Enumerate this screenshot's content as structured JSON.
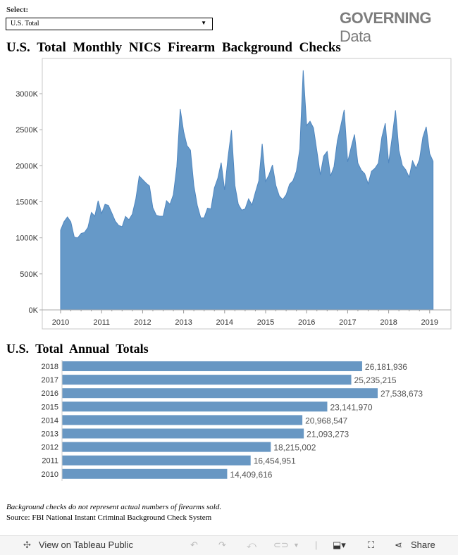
{
  "filter": {
    "label": "Select:",
    "value": "U.S. Total"
  },
  "logo": {
    "bold": "GOVERNING",
    "light": "Data"
  },
  "monthly_title": "U.S. Total Monthly NICS Firearm Background Checks",
  "annual_title": "U.S. Total Annual Totals",
  "footnote": "Background checks do not represent actual numbers of firearms sold.",
  "source": "Source: FBI National Instant Criminal Background Check System",
  "toolbar": {
    "view_label": "View on Tableau Public",
    "share_label": "Share"
  },
  "colors": {
    "area": "#6699c8",
    "area_stroke": "#4f86bf",
    "bar": "#6897c3"
  },
  "chart_data": [
    {
      "type": "area",
      "title": "U.S. Total Monthly NICS Firearm Background Checks",
      "x_start": "2010-01",
      "x_interval": "month",
      "x_ticks": [
        "2010",
        "2011",
        "2012",
        "2013",
        "2014",
        "2015",
        "2016",
        "2017",
        "2018",
        "2019"
      ],
      "y_ticks": [
        "0K",
        "500K",
        "1000K",
        "1500K",
        "2000K",
        "2500K",
        "3000K"
      ],
      "ylim": [
        0,
        3450
      ],
      "y_units": "thousands",
      "grid": false,
      "values": [
        1107,
        1222,
        1290,
        1222,
        1010,
        1000,
        1059,
        1075,
        1144,
        1352,
        1300,
        1515,
        1339,
        1466,
        1450,
        1342,
        1232,
        1173,
        1153,
        1297,
        1251,
        1329,
        1535,
        1857,
        1808,
        1759,
        1720,
        1417,
        1313,
        1300,
        1300,
        1515,
        1466,
        1597,
        1987,
        2786,
        2476,
        2280,
        2216,
        1727,
        1450,
        1278,
        1278,
        1411,
        1401,
        1694,
        1825,
        2043,
        1662,
        2118,
        2493,
        1727,
        1466,
        1385,
        1401,
        1541,
        1456,
        1629,
        1792,
        2304,
        1782,
        1874,
        2011,
        1727,
        1580,
        1531,
        1597,
        1743,
        1792,
        1923,
        2232,
        3323,
        2558,
        2617,
        2525,
        2199,
        1874,
        2134,
        2199,
        1857,
        1987,
        2346,
        2558,
        2776,
        2053,
        2248,
        2434,
        2036,
        1938,
        1889,
        1750,
        1923,
        1965,
        2036,
        2395,
        2590,
        2036,
        2395,
        2770,
        2216,
        2004,
        1945,
        1841,
        2069,
        1965,
        2085,
        2395,
        2541,
        2167,
        2062
      ]
    },
    {
      "type": "bar",
      "orientation": "horizontal",
      "title": "U.S. Total Annual Totals",
      "categories": [
        "2018",
        "2017",
        "2016",
        "2015",
        "2014",
        "2013",
        "2012",
        "2011",
        "2010"
      ],
      "values": [
        26181936,
        25235215,
        27538673,
        23141970,
        20968547,
        21093273,
        18215002,
        16454951,
        14409616
      ],
      "labels": [
        "26,181,936",
        "25,235,215",
        "27,538,673",
        "23,141,970",
        "20,968,547",
        "21,093,273",
        "18,215,002",
        "16,454,951",
        "14,409,616"
      ]
    }
  ]
}
